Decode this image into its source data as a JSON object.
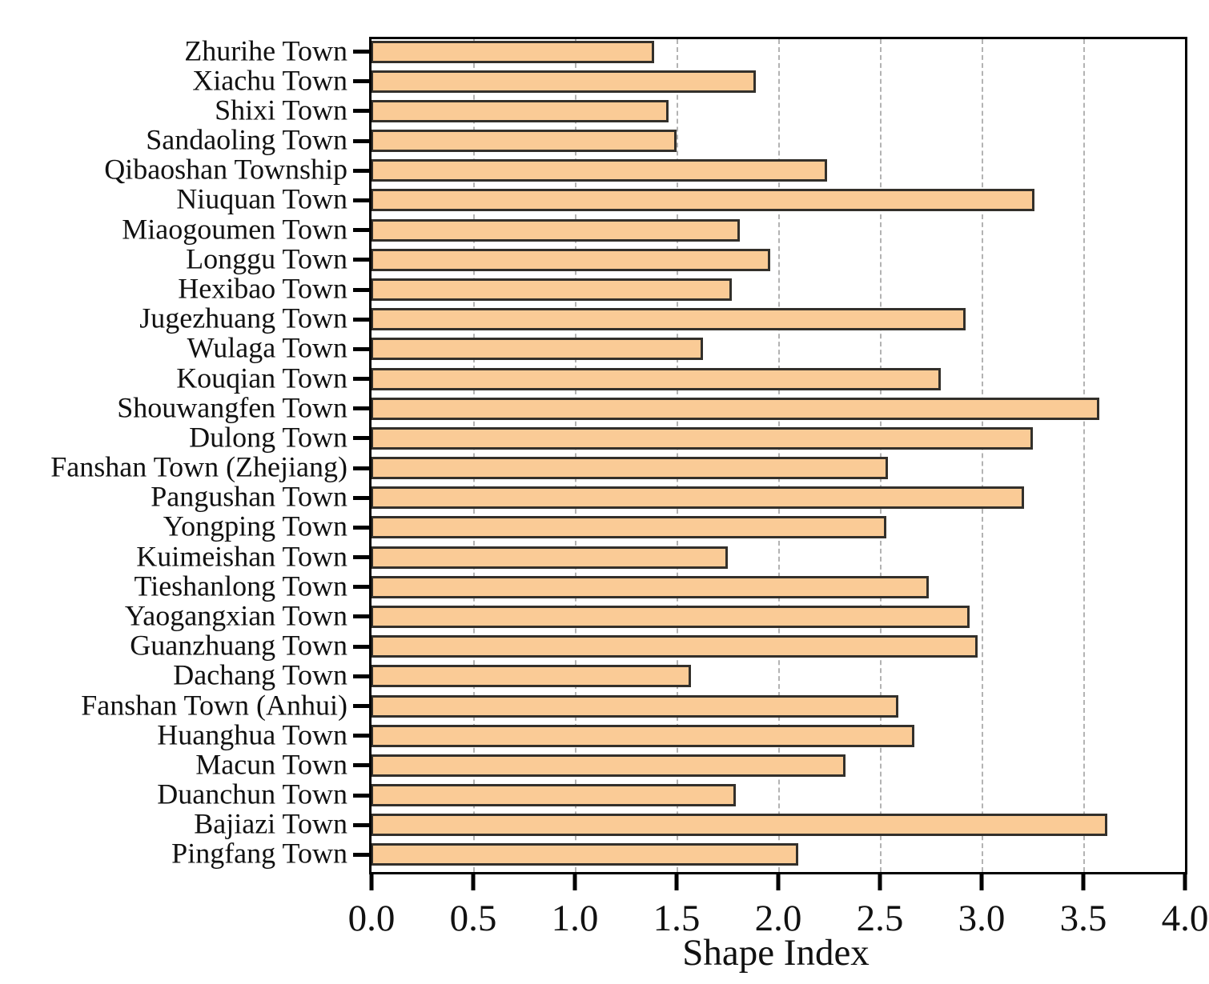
{
  "chart_data": {
    "type": "bar",
    "orientation": "horizontal",
    "title": "",
    "xlabel": "Shape Index",
    "ylabel": "",
    "xlim": [
      0,
      4
    ],
    "xtick_values": [
      0,
      0.5,
      1,
      1.5,
      2,
      2.5,
      3,
      3.5,
      4
    ],
    "xtick_labels": [
      "0.0",
      "0.5",
      "1.0",
      "1.5",
      "2.0",
      "2.5",
      "3.0",
      "3.5",
      "4.0"
    ],
    "gridline_values": [
      0.5,
      1,
      1.5,
      2,
      2.5,
      3,
      3.5
    ],
    "grid_style": "vertical-dashed",
    "legend_position": "none",
    "categories": [
      "Zhurihe Town",
      "Xiachu Town",
      "Shixi Town",
      "Sandaoling Town",
      "Qibaoshan Township",
      "Niuquan Town",
      "Miaogoumen Town",
      "Longgu Town",
      "Hexibao Town",
      "Jugezhuang Town",
      "Wulaga Town",
      "Kouqian Town",
      "Shouwangfen Town",
      "Dulong Town",
      "Fanshan Town (Zhejiang)",
      "Pangushan Town",
      "Yongping Town",
      "Kuimeishan Town",
      "Tieshanlong Town",
      "Yaogangxian Town",
      "Guanzhuang Town",
      "Dachang Town",
      "Fanshan Town (Anhui)",
      "Huanghua Town",
      "Macun Town",
      "Duanchun Town",
      "Bajiazi Town",
      "Pingfang Town"
    ],
    "values": [
      1.39,
      1.89,
      1.46,
      1.5,
      2.24,
      3.26,
      1.81,
      1.96,
      1.77,
      2.92,
      1.63,
      2.8,
      3.58,
      3.25,
      2.54,
      3.21,
      2.53,
      1.75,
      2.74,
      2.94,
      2.98,
      1.57,
      2.59,
      2.67,
      2.33,
      1.79,
      3.62,
      2.1
    ],
    "colors": {
      "bar_fill": "#FACB96",
      "bar_border": "#33302B",
      "frame": "#000000",
      "gridline": "#B3B3B3",
      "text": "#111111",
      "background": "#FFFFFF"
    }
  }
}
